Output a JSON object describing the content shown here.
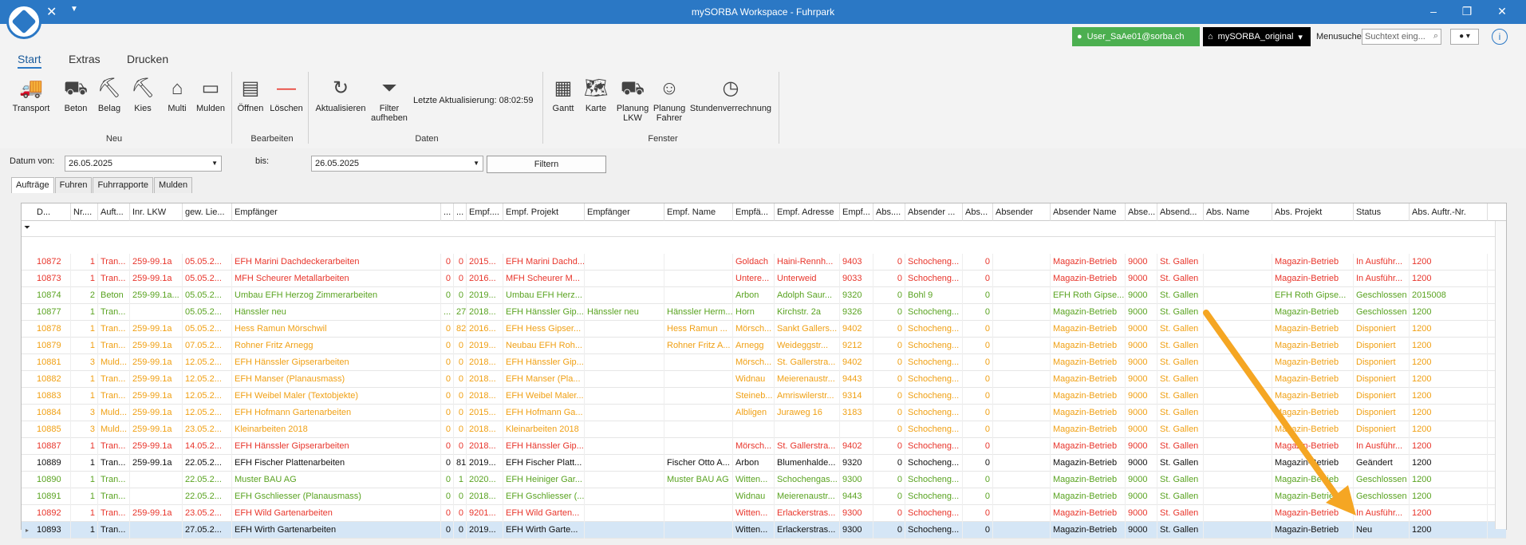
{
  "window": {
    "title": "mySORBA Workspace - Fuhrpark"
  },
  "user": {
    "name": "User_SaAe01@sorba.ch",
    "db": "mySORBA_original"
  },
  "menusuche": {
    "label": "Menusuche",
    "placeholder": "Suchtext eing..."
  },
  "menu": {
    "tabs": [
      "Start",
      "Extras",
      "Drucken"
    ]
  },
  "ribbon": {
    "neu": [
      "Transport",
      "Beton",
      "Belag",
      "Kies",
      "Multi",
      "Mulden"
    ],
    "bearbeiten": [
      "Öffnen",
      "Löschen"
    ],
    "daten_btn1": "Aktualisieren",
    "daten_btn2a": "Filter",
    "daten_btn2b": "aufheben",
    "lastupdate": "Letzte Aktualisierung:   08:02:59",
    "fenster": [
      "Gantt",
      "Karte",
      "Planung LKW",
      "Planung Fahrer",
      "Stundenverrechnung"
    ],
    "fenster_planung_lkw_a": "Planung",
    "fenster_planung_lkw_b": "LKW",
    "fenster_planung_fahrer_a": "Planung",
    "fenster_planung_fahrer_b": "Fahrer",
    "groups": {
      "neu": "Neu",
      "bearbeiten": "Bearbeiten",
      "daten": "Daten",
      "fenster": "Fenster"
    }
  },
  "filter": {
    "von_label": "Datum von:",
    "von": "26.05.2025",
    "bis_label": "bis:",
    "bis": "26.05.2025",
    "button": "Filtern"
  },
  "tabs": [
    "Aufträge",
    "Fuhren",
    "Fuhrrapporte",
    "Mulden"
  ],
  "grid": {
    "columns": [
      "D...",
      "Nr....",
      "Auft...",
      "Inr. LKW",
      "gew. Lie...",
      "Empfänger",
      "...",
      "...",
      "Empf....",
      "Empf. Projekt",
      "Empfänger",
      "Empf. Name",
      "Empfä...",
      "Empf. Adresse",
      "Empf...",
      "Abs....",
      "Absender ...",
      "Abs...",
      "Absender",
      "Absender Name",
      "Abse...",
      "Absend...",
      "Abs. Name",
      "Abs. Projekt",
      "Status",
      "Abs. Auftr.-Nr."
    ],
    "rows": [
      {
        "color": "red",
        "c": [
          "10872",
          "1",
          "Tran...",
          "259-99.1a",
          "05.05.2...",
          "EFH Marini Dachdeckerarbeiten",
          "0",
          "0",
          "2015...",
          "EFH Marini Dachd...",
          "",
          "",
          "Goldach",
          "Haini-Rennh...",
          "9403",
          "0",
          "Schocheng...",
          "0",
          "",
          "Magazin-Betrieb",
          "9000",
          "St. Gallen",
          "",
          "Magazin-Betrieb",
          "In Ausführ...",
          "1200"
        ]
      },
      {
        "color": "red",
        "c": [
          "10873",
          "1",
          "Tran...",
          "259-99.1a",
          "05.05.2...",
          "MFH Scheurer Metallarbeiten",
          "0",
          "0",
          "2016...",
          "MFH Scheurer M...",
          "",
          "",
          "Untere...",
          "Unterweid",
          "9033",
          "0",
          "Schocheng...",
          "0",
          "",
          "Magazin-Betrieb",
          "9000",
          "St. Gallen",
          "",
          "Magazin-Betrieb",
          "In Ausführ...",
          "1200"
        ]
      },
      {
        "color": "green",
        "c": [
          "10874",
          "2",
          "Beton",
          "259-99.1a...",
          "05.05.2...",
          "Umbau EFH Herzog Zimmerarbeiten",
          "0",
          "0",
          "2019...",
          "Umbau EFH Herz...",
          "",
          "",
          "Arbon",
          "Adolph Saur...",
          "9320",
          "0",
          "Bohl 9",
          "0",
          "",
          "EFH Roth Gipse...",
          "9000",
          "St. Gallen",
          "",
          "EFH Roth Gipse...",
          "Geschlossen",
          "2015008"
        ]
      },
      {
        "color": "green",
        "c": [
          "10877",
          "1",
          "Tran...",
          "",
          "05.05.2...",
          "Hänssler neu",
          "...",
          "27",
          "2018...",
          "EFH Hänssler Gip...",
          "Hänssler neu",
          "Hänssler Herm...",
          "Horn",
          "Kirchstr. 2a",
          "9326",
          "0",
          "Schocheng...",
          "0",
          "",
          "Magazin-Betrieb",
          "9000",
          "St. Gallen",
          "",
          "Magazin-Betrieb",
          "Geschlossen",
          "1200"
        ]
      },
      {
        "color": "orange",
        "c": [
          "10878",
          "1",
          "Tran...",
          "259-99.1a",
          "05.05.2...",
          "Hess Ramun Mörschwil",
          "0",
          "82",
          "2016...",
          "EFH Hess Gipser...",
          "",
          "Hess Ramun ...",
          "Mörsch...",
          "Sankt Gallers...",
          "9402",
          "0",
          "Schocheng...",
          "0",
          "",
          "Magazin-Betrieb",
          "9000",
          "St. Gallen",
          "",
          "Magazin-Betrieb",
          "Disponiert",
          "1200"
        ]
      },
      {
        "color": "orange",
        "c": [
          "10879",
          "1",
          "Tran...",
          "259-99.1a",
          "07.05.2...",
          "Rohner Fritz Arnegg",
          "0",
          "0",
          "2019...",
          "Neubau EFH Roh...",
          "",
          "Rohner Fritz A...",
          "Arnegg",
          "Weideggstr...",
          "9212",
          "0",
          "Schocheng...",
          "0",
          "",
          "Magazin-Betrieb",
          "9000",
          "St. Gallen",
          "",
          "Magazin-Betrieb",
          "Disponiert",
          "1200"
        ]
      },
      {
        "color": "orange",
        "c": [
          "10881",
          "3",
          "Muld...",
          "259-99.1a",
          "12.05.2...",
          "EFH Hänssler Gipserarbeiten",
          "0",
          "0",
          "2018...",
          "EFH Hänssler Gip...",
          "",
          "",
          "Mörsch...",
          "St. Gallerstra...",
          "9402",
          "0",
          "Schocheng...",
          "0",
          "",
          "Magazin-Betrieb",
          "9000",
          "St. Gallen",
          "",
          "Magazin-Betrieb",
          "Disponiert",
          "1200"
        ]
      },
      {
        "color": "orange",
        "c": [
          "10882",
          "1",
          "Tran...",
          "259-99.1a",
          "12.05.2...",
          "EFH Manser (Planausmass)",
          "0",
          "0",
          "2018...",
          "EFH Manser (Pla...",
          "",
          "",
          "Widnau",
          "Meierenaustr...",
          "9443",
          "0",
          "Schocheng...",
          "0",
          "",
          "Magazin-Betrieb",
          "9000",
          "St. Gallen",
          "",
          "Magazin-Betrieb",
          "Disponiert",
          "1200"
        ]
      },
      {
        "color": "orange",
        "c": [
          "10883",
          "1",
          "Tran...",
          "259-99.1a",
          "12.05.2...",
          "EFH Weibel Maler (Textobjekte)",
          "0",
          "0",
          "2018...",
          "EFH Weibel Maler...",
          "",
          "",
          "Steineb...",
          "Amriswilerstr...",
          "9314",
          "0",
          "Schocheng...",
          "0",
          "",
          "Magazin-Betrieb",
          "9000",
          "St. Gallen",
          "",
          "Magazin-Betrieb",
          "Disponiert",
          "1200"
        ]
      },
      {
        "color": "orange",
        "c": [
          "10884",
          "3",
          "Muld...",
          "259-99.1a",
          "12.05.2...",
          "EFH Hofmann Gartenarbeiten",
          "0",
          "0",
          "2015...",
          "EFH Hofmann Ga...",
          "",
          "",
          "Albligen",
          "Juraweg 16",
          "3183",
          "0",
          "Schocheng...",
          "0",
          "",
          "Magazin-Betrieb",
          "9000",
          "St. Gallen",
          "",
          "Magazin-Betrieb",
          "Disponiert",
          "1200"
        ]
      },
      {
        "color": "orange",
        "c": [
          "10885",
          "3",
          "Muld...",
          "259-99.1a",
          "23.05.2...",
          "Kleinarbeiten 2018",
          "0",
          "0",
          "2018...",
          "Kleinarbeiten 2018",
          "",
          "",
          "",
          "",
          "",
          "0",
          "Schocheng...",
          "0",
          "",
          "Magazin-Betrieb",
          "9000",
          "St. Gallen",
          "",
          "Magazin-Betrieb",
          "Disponiert",
          "1200"
        ]
      },
      {
        "color": "red",
        "c": [
          "10887",
          "1",
          "Tran...",
          "259-99.1a",
          "14.05.2...",
          "EFH Hänssler Gipserarbeiten",
          "0",
          "0",
          "2018...",
          "EFH Hänssler Gip...",
          "",
          "",
          "Mörsch...",
          "St. Gallerstra...",
          "9402",
          "0",
          "Schocheng...",
          "0",
          "",
          "Magazin-Betrieb",
          "9000",
          "St. Gallen",
          "",
          "Magazin-Betrieb",
          "In Ausführ...",
          "1200"
        ]
      },
      {
        "color": "black",
        "c": [
          "10889",
          "1",
          "Tran...",
          "259-99.1a",
          "22.05.2...",
          "EFH Fischer Plattenarbeiten",
          "0",
          "81",
          "2019...",
          "EFH Fischer Platt...",
          "",
          "Fischer Otto A...",
          "Arbon",
          "Blumenhalde...",
          "9320",
          "0",
          "Schocheng...",
          "0",
          "",
          "Magazin-Betrieb",
          "9000",
          "St. Gallen",
          "",
          "Magazin-Betrieb",
          "Geändert",
          "1200"
        ]
      },
      {
        "color": "green",
        "c": [
          "10890",
          "1",
          "Tran...",
          "",
          "22.05.2...",
          "Muster BAU AG",
          "0",
          "1",
          "2020...",
          "EFH Heiniger Gar...",
          "",
          "Muster BAU AG",
          "Witten...",
          "Schochengas...",
          "9300",
          "0",
          "Schocheng...",
          "0",
          "",
          "Magazin-Betrieb",
          "9000",
          "St. Gallen",
          "",
          "Magazin-Betrieb",
          "Geschlossen",
          "1200"
        ]
      },
      {
        "color": "green",
        "c": [
          "10891",
          "1",
          "Tran...",
          "",
          "22.05.2...",
          "EFH Gschliesser (Planausmass)",
          "0",
          "0",
          "2018...",
          "EFH Gschliesser (...",
          "",
          "",
          "Widnau",
          "Meierenaustr...",
          "9443",
          "0",
          "Schocheng...",
          "0",
          "",
          "Magazin-Betrieb",
          "9000",
          "St. Gallen",
          "",
          "Magazin-Betrieb",
          "Geschlossen",
          "1200"
        ]
      },
      {
        "color": "red",
        "c": [
          "10892",
          "1",
          "Tran...",
          "259-99.1a",
          "23.05.2...",
          "EFH Wild Gartenarbeiten",
          "0",
          "0",
          "9201...",
          "EFH Wild Garten...",
          "",
          "",
          "Witten...",
          "Erlackerstras...",
          "9300",
          "0",
          "Schocheng...",
          "0",
          "",
          "Magazin-Betrieb",
          "9000",
          "St. Gallen",
          "",
          "Magazin-Betrieb",
          "In Ausführ...",
          "1200"
        ]
      },
      {
        "color": "black",
        "selected": true,
        "c": [
          "10893",
          "1",
          "Tran...",
          "",
          "27.05.2...",
          "EFH Wirth Gartenarbeiten",
          "0",
          "0",
          "2019...",
          "EFH Wirth Garte...",
          "",
          "",
          "Witten...",
          "Erlackerstras...",
          "9300",
          "0",
          "Schocheng...",
          "0",
          "",
          "Magazin-Betrieb",
          "9000",
          "St. Gallen",
          "",
          "Magazin-Betrieb",
          "Neu",
          "1200"
        ]
      }
    ]
  },
  "annotation": {
    "color": "#f5a623"
  }
}
